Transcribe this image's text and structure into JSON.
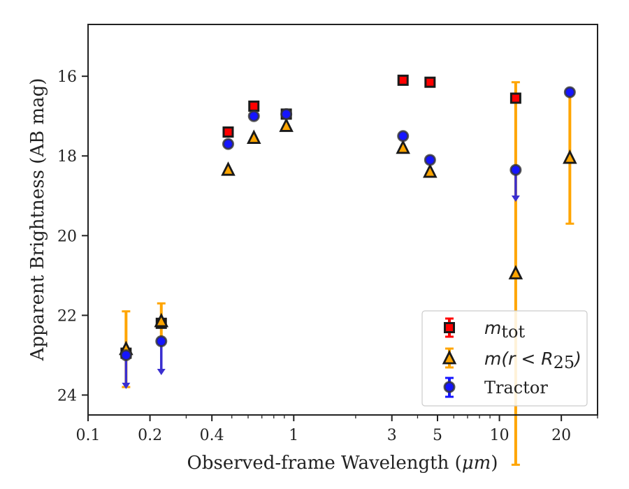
{
  "chart_data": {
    "type": "scatter",
    "xscale": "log",
    "yinverted": true,
    "xlim": [
      0.1,
      30
    ],
    "ylim": [
      14.7,
      24.5
    ],
    "xlabel": "Observed-frame Wavelength (",
    "xlabel_unit": "μm",
    "xlabel_close": ")",
    "ylabel": "Apparent Brightness (AB mag)",
    "xticks": [
      0.1,
      0.2,
      0.4,
      1,
      3,
      5,
      10,
      20
    ],
    "xtick_labels": [
      "0.1",
      "0.2",
      "0.4",
      "1",
      "3",
      "5",
      "10",
      "20"
    ],
    "yticks": [
      16,
      18,
      20,
      22,
      24
    ],
    "ytick_labels": [
      "16",
      "18",
      "20",
      "22",
      "24"
    ],
    "legend_position": "lower-right",
    "series": [
      {
        "name": "m_tot",
        "label_main": "m",
        "label_sub": "tot",
        "marker": "square",
        "color": "#ff0000",
        "edge_color": "#1a1a1a",
        "points": [
          {
            "x": 0.153,
            "y": 22.95,
            "upper_limit": false
          },
          {
            "x": 0.227,
            "y": 22.2,
            "upper_limit": false
          },
          {
            "x": 0.48,
            "y": 17.4,
            "upper_limit": false
          },
          {
            "x": 0.64,
            "y": 16.75,
            "upper_limit": false
          },
          {
            "x": 0.92,
            "y": 16.95,
            "upper_limit": false
          },
          {
            "x": 3.4,
            "y": 16.1,
            "upper_limit": false
          },
          {
            "x": 4.6,
            "y": 16.15,
            "upper_limit": false
          },
          {
            "x": 12.0,
            "y": 16.55,
            "upper_limit": false
          }
        ]
      },
      {
        "name": "m(r<R25)",
        "label_main": "m(r < R",
        "label_sub": "25",
        "label_close": ")",
        "marker": "triangle",
        "color": "#ffa500",
        "edge_color": "#1a1a1a",
        "points": [
          {
            "x": 0.153,
            "y": 22.85,
            "err_low": 0.95,
            "err_high": 0.95
          },
          {
            "x": 0.227,
            "y": 22.15,
            "err_low": 0.45,
            "err_high": 0.45
          },
          {
            "x": 0.48,
            "y": 18.35
          },
          {
            "x": 0.64,
            "y": 17.55
          },
          {
            "x": 0.92,
            "y": 17.25
          },
          {
            "x": 3.4,
            "y": 17.8
          },
          {
            "x": 4.6,
            "y": 18.4
          },
          {
            "x": 12.0,
            "y": 20.95,
            "err_low": 4.8,
            "err_high": 4.8
          },
          {
            "x": 22.0,
            "y": 18.05,
            "err_low": 1.65,
            "err_high": 1.65
          }
        ]
      },
      {
        "name": "Tractor",
        "label_main": "Tractor",
        "marker": "circle",
        "color": "#1515ff",
        "edge_color": "#333333",
        "arrow_color": "#3a2fd0",
        "points": [
          {
            "x": 0.153,
            "y": 23.0,
            "upper_limit": true,
            "limit_to": 23.85
          },
          {
            "x": 0.227,
            "y": 22.65,
            "upper_limit": true,
            "limit_to": 23.5
          },
          {
            "x": 0.48,
            "y": 17.7
          },
          {
            "x": 0.64,
            "y": 17.0
          },
          {
            "x": 0.92,
            "y": 16.95
          },
          {
            "x": 3.4,
            "y": 17.5
          },
          {
            "x": 4.6,
            "y": 18.1
          },
          {
            "x": 12.0,
            "y": 18.35,
            "upper_limit": true,
            "limit_to": 19.15
          },
          {
            "x": 22.0,
            "y": 16.4
          }
        ]
      }
    ]
  }
}
